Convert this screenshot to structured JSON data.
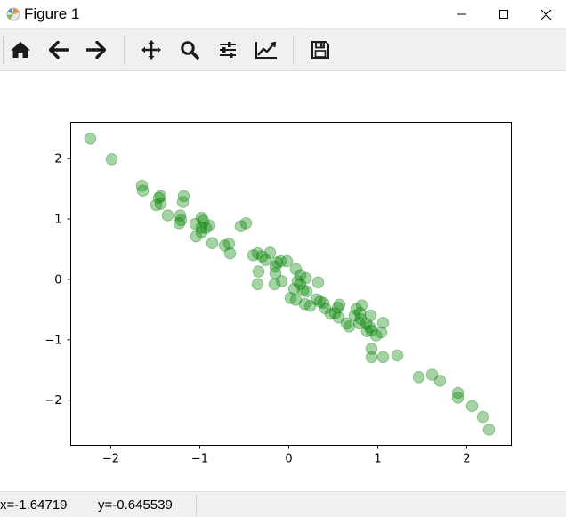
{
  "window": {
    "title": "Figure 1",
    "controls": [
      "minimize",
      "maximize",
      "close"
    ]
  },
  "toolbar": {
    "buttons": [
      {
        "name": "home",
        "icon": "home-icon"
      },
      {
        "name": "back",
        "icon": "arrow-left-icon"
      },
      {
        "name": "forward",
        "icon": "arrow-right-icon"
      },
      {
        "name": "pan",
        "icon": "move-icon"
      },
      {
        "name": "zoom",
        "icon": "magnifier-icon"
      },
      {
        "name": "configure-subplots",
        "icon": "sliders-icon"
      },
      {
        "name": "edit-axes",
        "icon": "line-chart-icon"
      },
      {
        "name": "save",
        "icon": "floppy-disk-icon"
      }
    ]
  },
  "status": {
    "x_label": "x=-1.64719",
    "y_label": "y=-0.645539"
  },
  "chart_data": {
    "type": "scatter",
    "xlim": [
      -2.45,
      2.5
    ],
    "ylim": [
      -2.75,
      2.6
    ],
    "xticks": [
      -2,
      -1,
      0,
      1,
      2
    ],
    "xtick_labels": [
      "−2",
      "−1",
      "0",
      "1",
      "2"
    ],
    "yticks": [
      -2,
      -1,
      0,
      1,
      2
    ],
    "ytick_labels": [
      "−2",
      "−1",
      "0",
      "1",
      "2"
    ],
    "marker_color": "#008000",
    "marker_alpha": 0.35,
    "grid": false,
    "points": [
      [
        -2.23,
        2.33
      ],
      [
        -1.99,
        1.99
      ],
      [
        -1.65,
        1.55
      ],
      [
        -1.64,
        1.47
      ],
      [
        -1.46,
        1.35
      ],
      [
        -1.44,
        1.38
      ],
      [
        -1.49,
        1.23
      ],
      [
        -1.44,
        1.25
      ],
      [
        -1.36,
        1.06
      ],
      [
        -1.18,
        1.38
      ],
      [
        -1.19,
        1.28
      ],
      [
        -1.22,
        1.06
      ],
      [
        -1.23,
        0.93
      ],
      [
        -1.21,
        0.98
      ],
      [
        -1.05,
        0.92
      ],
      [
        -0.98,
        1.02
      ],
      [
        -0.96,
        0.97
      ],
      [
        -0.98,
        0.86
      ],
      [
        -0.93,
        0.85
      ],
      [
        -0.89,
        0.89
      ],
      [
        -1.04,
        0.71
      ],
      [
        -0.98,
        0.78
      ],
      [
        -0.86,
        0.6
      ],
      [
        -0.72,
        0.56
      ],
      [
        -0.67,
        0.59
      ],
      [
        -0.66,
        0.43
      ],
      [
        -0.54,
        0.88
      ],
      [
        -0.48,
        0.93
      ],
      [
        -0.4,
        0.4
      ],
      [
        -0.35,
        0.43
      ],
      [
        -0.3,
        0.38
      ],
      [
        -0.26,
        0.32
      ],
      [
        -0.21,
        0.44
      ],
      [
        -0.34,
        0.13
      ],
      [
        -0.35,
        -0.08
      ],
      [
        -0.15,
        0.21
      ],
      [
        -0.13,
        0.28
      ],
      [
        -0.09,
        0.3
      ],
      [
        -0.02,
        0.3
      ],
      [
        -0.15,
        0.1
      ],
      [
        -0.16,
        -0.08
      ],
      [
        -0.08,
        -0.03
      ],
      [
        0.08,
        0.17
      ],
      [
        0.13,
        0.07
      ],
      [
        0.19,
        0.02
      ],
      [
        0.1,
        -0.03
      ],
      [
        0.13,
        -0.08
      ],
      [
        0.06,
        -0.16
      ],
      [
        0.16,
        -0.18
      ],
      [
        0.2,
        -0.2
      ],
      [
        0.02,
        -0.31
      ],
      [
        0.08,
        -0.34
      ],
      [
        0.18,
        -0.41
      ],
      [
        0.24,
        -0.44
      ],
      [
        0.33,
        -0.05
      ],
      [
        0.31,
        -0.33
      ],
      [
        0.35,
        -0.37
      ],
      [
        0.41,
        -0.48
      ],
      [
        0.39,
        -0.39
      ],
      [
        0.52,
        -0.56
      ],
      [
        0.47,
        -0.57
      ],
      [
        0.55,
        -0.47
      ],
      [
        0.57,
        -0.42
      ],
      [
        0.56,
        -0.63
      ],
      [
        0.65,
        -0.73
      ],
      [
        0.68,
        -0.78
      ],
      [
        0.74,
        -0.6
      ],
      [
        0.76,
        -0.49
      ],
      [
        0.82,
        -0.43
      ],
      [
        0.8,
        -0.56
      ],
      [
        0.81,
        -0.66
      ],
      [
        0.79,
        -0.73
      ],
      [
        0.87,
        -0.73
      ],
      [
        0.88,
        -0.86
      ],
      [
        0.91,
        -0.79
      ],
      [
        0.93,
        -0.85
      ],
      [
        0.98,
        -0.93
      ],
      [
        1.04,
        -0.88
      ],
      [
        1.06,
        -0.72
      ],
      [
        0.92,
        -0.6
      ],
      [
        0.93,
        -1.15
      ],
      [
        0.93,
        -1.29
      ],
      [
        1.06,
        -1.29
      ],
      [
        1.22,
        -1.26
      ],
      [
        1.46,
        -1.62
      ],
      [
        1.61,
        -1.58
      ],
      [
        1.7,
        -1.68
      ],
      [
        1.9,
        -1.88
      ],
      [
        1.9,
        -1.96
      ],
      [
        2.06,
        -2.1
      ],
      [
        2.18,
        -2.28
      ],
      [
        2.25,
        -2.49
      ]
    ]
  }
}
